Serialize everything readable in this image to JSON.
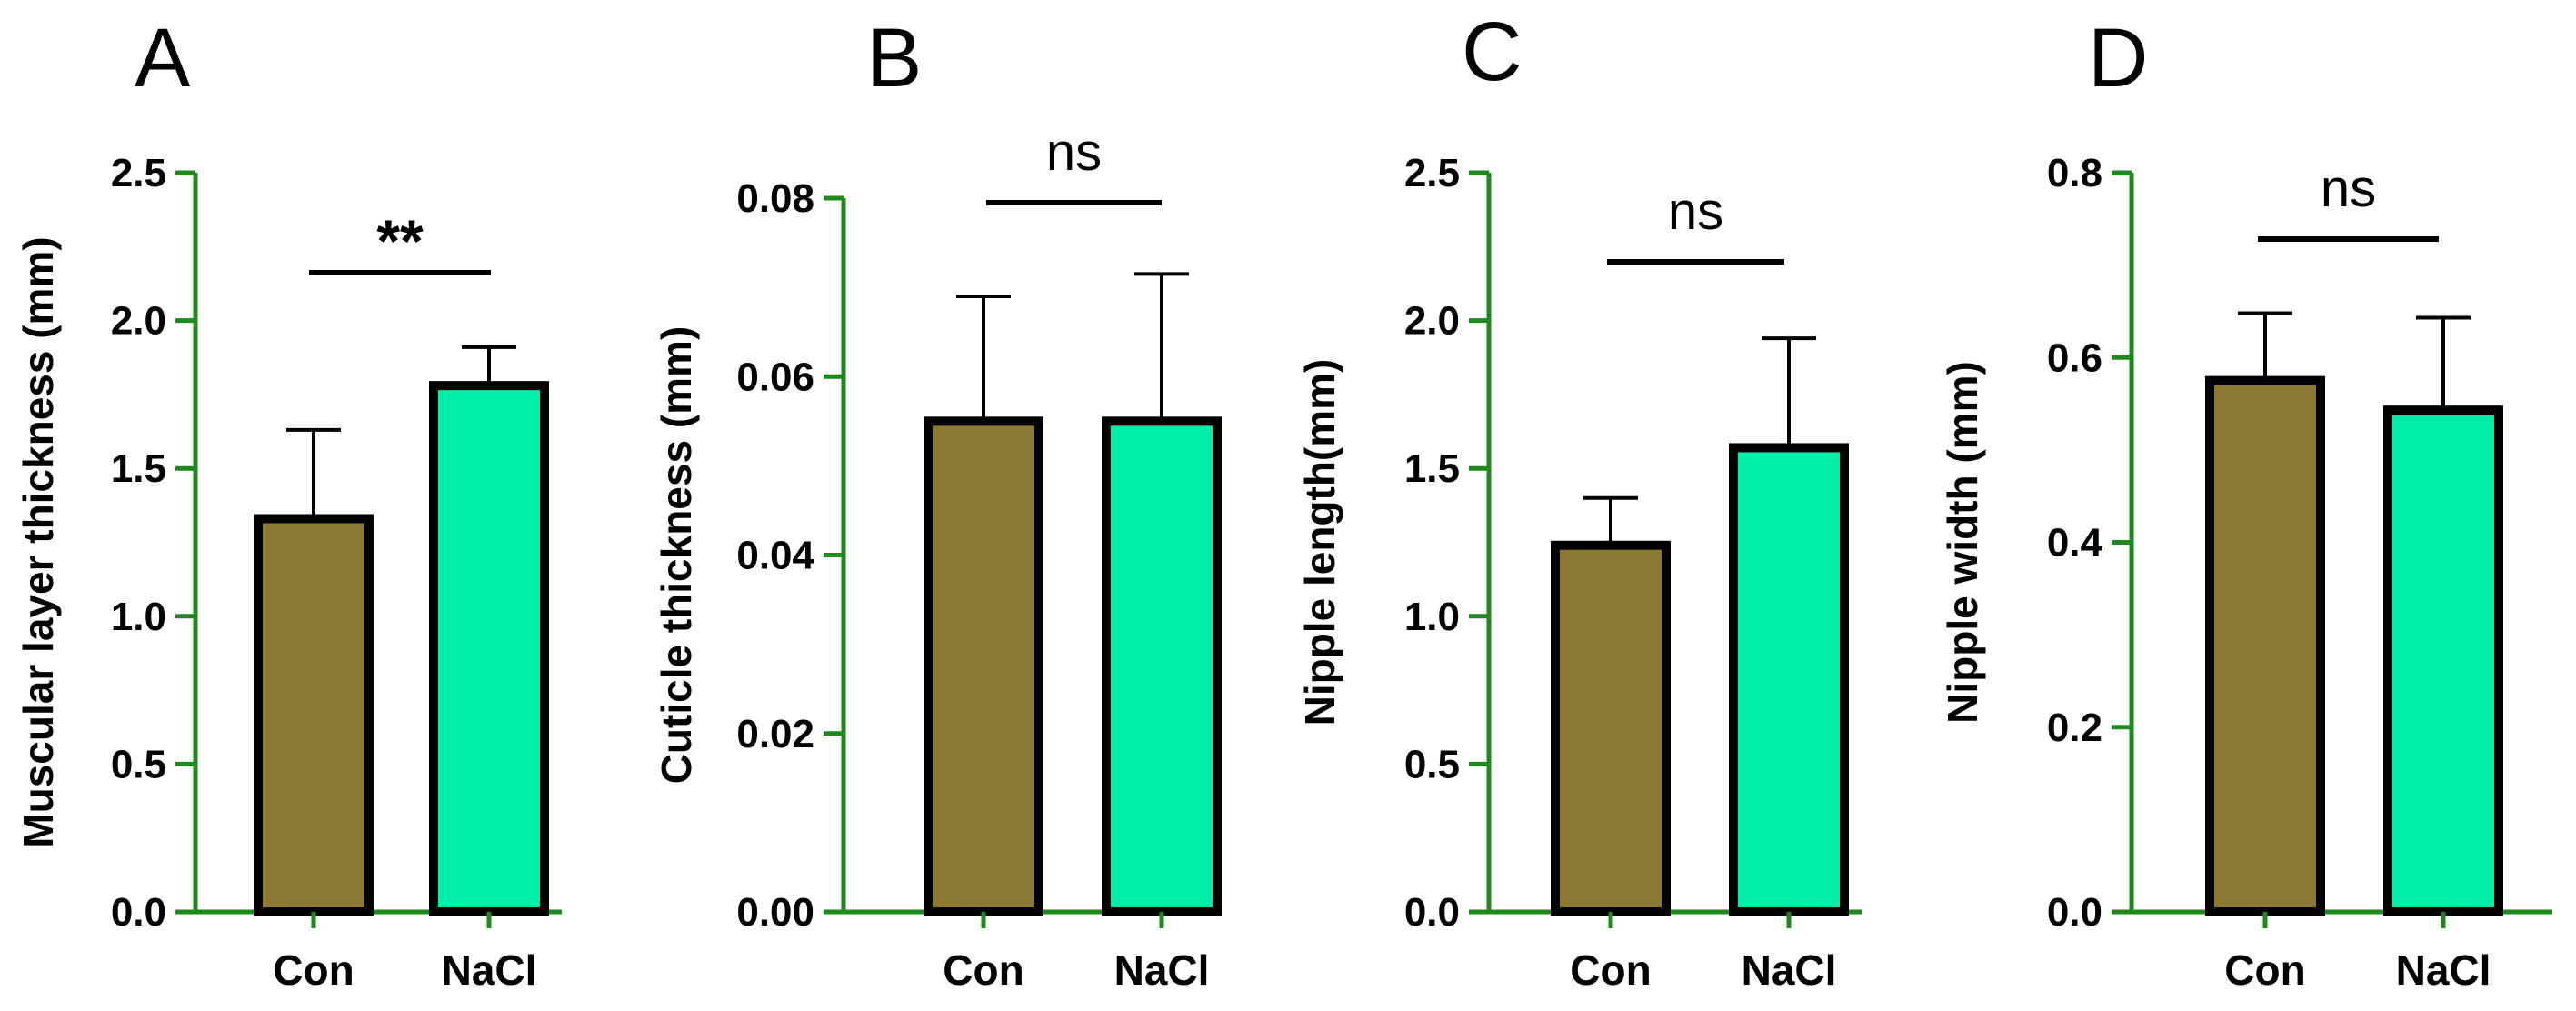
{
  "colors": {
    "axis": "#1e8a1e",
    "con": "#8c7a32",
    "nacl": "#00eea8",
    "outline": "#000000"
  },
  "chart_data": [
    {
      "type": "bar",
      "panel": "A",
      "ylabel": "Muscular layer thickness (mm)",
      "ylim": [
        0,
        2.5
      ],
      "yticks": [
        0.0,
        0.5,
        1.0,
        1.5,
        2.0,
        2.5
      ],
      "ytick_labels": [
        "0.0",
        "0.5",
        "1.0",
        "1.5",
        "2.0",
        "2.5"
      ],
      "categories": [
        "Con",
        "NaCl"
      ],
      "values": [
        1.33,
        1.78
      ],
      "errors": [
        0.3,
        0.13
      ],
      "significance": "**"
    },
    {
      "type": "bar",
      "panel": "B",
      "ylabel": "Cuticle thickness (mm)",
      "ylim": [
        0,
        0.08
      ],
      "yticks": [
        0.0,
        0.02,
        0.04,
        0.06,
        0.08
      ],
      "ytick_labels": [
        "0.00",
        "0.02",
        "0.04",
        "0.06",
        "0.08"
      ],
      "categories": [
        "Con",
        "NaCl"
      ],
      "values": [
        0.055,
        0.055
      ],
      "errors": [
        0.014,
        0.0165
      ],
      "significance": "ns"
    },
    {
      "type": "bar",
      "panel": "C",
      "ylabel": "Nipple length(mm)",
      "ylim": [
        0,
        2.5
      ],
      "yticks": [
        0.0,
        0.5,
        1.0,
        1.5,
        2.0,
        2.5
      ],
      "ytick_labels": [
        "0.0",
        "0.5",
        "1.0",
        "1.5",
        "2.0",
        "2.5"
      ],
      "categories": [
        "Con",
        "NaCl"
      ],
      "values": [
        1.24,
        1.57
      ],
      "errors": [
        0.16,
        0.37
      ],
      "significance": "ns"
    },
    {
      "type": "bar",
      "panel": "D",
      "ylabel": "Nipple width (mm)",
      "ylim": [
        0,
        0.8
      ],
      "yticks": [
        0.0,
        0.2,
        0.4,
        0.6,
        0.8
      ],
      "ytick_labels": [
        "0.0",
        "0.2",
        "0.4",
        "0.6",
        "0.8"
      ],
      "categories": [
        "Con",
        "NaCl"
      ],
      "values": [
        0.575,
        0.543
      ],
      "errors": [
        0.073,
        0.1
      ],
      "significance": "ns"
    }
  ]
}
